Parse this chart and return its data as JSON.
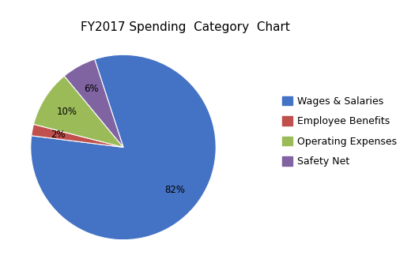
{
  "title": "FY2017 Spending  Category  Chart",
  "labels": [
    "Wages & Salaries",
    "Employee Benefits",
    "Operating Expenses",
    "Safety Net"
  ],
  "values": [
    82,
    2,
    10,
    6
  ],
  "colors": [
    "#4472C4",
    "#C0504D",
    "#9BBB59",
    "#8064A2"
  ],
  "legend_labels": [
    "Wages & Salaries",
    "Employee Benefits",
    "Operating Expenses",
    "Safety Net"
  ],
  "title_fontsize": 11,
  "figsize": [
    5.2,
    3.33
  ],
  "dpi": 100,
  "startangle": 108,
  "pctdistance": 0.72
}
